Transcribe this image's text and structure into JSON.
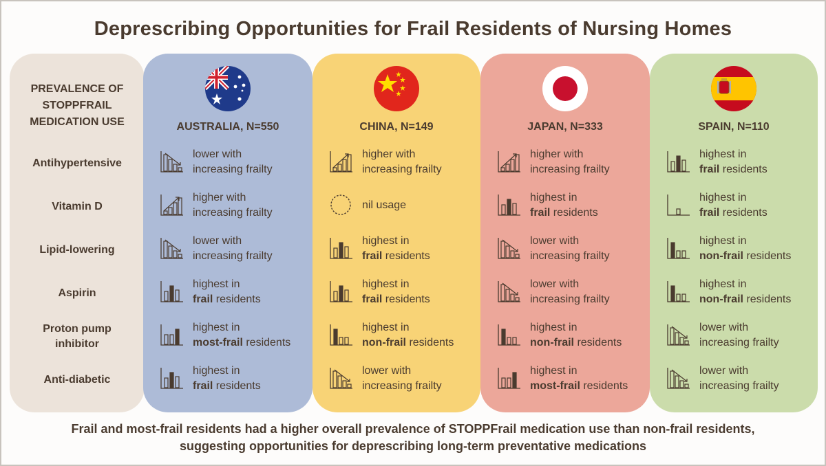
{
  "title": "Deprescribing Opportunities for Frail Residents of Nursing Homes",
  "label_header": [
    "PREVALENCE OF",
    "STOPPFRAIL",
    "MEDICATION USE"
  ],
  "medications": [
    [
      "Antihypertensive"
    ],
    [
      "Vitamin D"
    ],
    [
      "Lipid-lowering"
    ],
    [
      "Aspirin"
    ],
    [
      "Proton pump",
      "inhibitor"
    ],
    [
      "Anti-diabetic"
    ]
  ],
  "colors": {
    "labels": "#ece3da",
    "australia": "#adbbd7",
    "china": "#f8d376",
    "japan": "#eca79a",
    "spain": "#cbdcab"
  },
  "countries": [
    {
      "name": "AUSTRALIA, N=550",
      "flag": "australia-flag-icon",
      "cells": [
        {
          "icon": "lower-trend-chart-icon",
          "line1_pre": "lower with",
          "line1_bold": "",
          "line2_bold": "",
          "line2_post": "increasing frailty"
        },
        {
          "icon": "higher-trend-chart-icon",
          "line1_pre": "higher with",
          "line1_bold": "",
          "line2_bold": "",
          "line2_post": "increasing frailty"
        },
        {
          "icon": "lower-trend-chart-icon",
          "line1_pre": "lower with",
          "line1_bold": "",
          "line2_bold": "",
          "line2_post": "increasing frailty"
        },
        {
          "icon": "frail-highest-chart-icon",
          "line1_pre": "highest in",
          "line1_bold": "",
          "line2_bold": "frail",
          "line2_post": " residents"
        },
        {
          "icon": "most-frail-highest-chart-icon",
          "line1_pre": "highest in",
          "line1_bold": "",
          "line2_bold": "most-frail",
          "line2_post": " residents"
        },
        {
          "icon": "frail-highest-chart-icon",
          "line1_pre": "highest in",
          "line1_bold": "",
          "line2_bold": "frail",
          "line2_post": " residents"
        }
      ]
    },
    {
      "name": "CHINA, N=149",
      "flag": "china-flag-icon",
      "cells": [
        {
          "icon": "higher-trend-chart-icon",
          "line1_pre": "higher with",
          "line1_bold": "",
          "line2_bold": "",
          "line2_post": "increasing frailty"
        },
        {
          "icon": "nil-usage-circle-icon",
          "line1_pre": "nil usage",
          "line1_bold": "",
          "line2_bold": "",
          "line2_post": ""
        },
        {
          "icon": "frail-highest-chart-icon",
          "line1_pre": "highest in",
          "line1_bold": "",
          "line2_bold": "frail",
          "line2_post": " residents"
        },
        {
          "icon": "frail-highest-chart-icon",
          "line1_pre": "highest in",
          "line1_bold": "",
          "line2_bold": "frail",
          "line2_post": " residents"
        },
        {
          "icon": "non-frail-highest-chart-icon",
          "line1_pre": "highest in",
          "line1_bold": "",
          "line2_bold": "non-frail",
          "line2_post": " residents"
        },
        {
          "icon": "lower-trend-chart-icon",
          "line1_pre": "lower with",
          "line1_bold": "",
          "line2_bold": "",
          "line2_post": "increasing frailty"
        }
      ]
    },
    {
      "name": "JAPAN, N=333",
      "flag": "japan-flag-icon",
      "cells": [
        {
          "icon": "higher-trend-chart-icon",
          "line1_pre": "higher with",
          "line1_bold": "",
          "line2_bold": "",
          "line2_post": "increasing frailty"
        },
        {
          "icon": "frail-highest-chart-icon",
          "line1_pre": "highest in",
          "line1_bold": "",
          "line2_bold": "frail",
          "line2_post": " residents"
        },
        {
          "icon": "lower-trend-chart-icon",
          "line1_pre": "lower with",
          "line1_bold": "",
          "line2_bold": "",
          "line2_post": "increasing frailty"
        },
        {
          "icon": "lower-trend-chart-icon",
          "line1_pre": "lower with",
          "line1_bold": "",
          "line2_bold": "",
          "line2_post": "increasing frailty"
        },
        {
          "icon": "non-frail-highest-chart-icon",
          "line1_pre": "highest in",
          "line1_bold": "",
          "line2_bold": "non-frail",
          "line2_post": " residents"
        },
        {
          "icon": "most-frail-highest-chart-icon",
          "line1_pre": "highest in",
          "line1_bold": "",
          "line2_bold": "most-frail",
          "line2_post": " residents"
        }
      ]
    },
    {
      "name": "SPAIN, N=110",
      "flag": "spain-flag-icon",
      "cells": [
        {
          "icon": "frail-highest-chart-icon",
          "line1_pre": "highest in",
          "line1_bold": "",
          "line2_bold": "frail",
          "line2_post": " residents"
        },
        {
          "icon": "frail-only-chart-icon",
          "line1_pre": "highest in",
          "line1_bold": "",
          "line2_bold": "frail",
          "line2_post": " residents"
        },
        {
          "icon": "non-frail-highest-chart-icon",
          "line1_pre": "highest in",
          "line1_bold": "",
          "line2_bold": "non-frail",
          "line2_post": " residents"
        },
        {
          "icon": "non-frail-highest-chart-icon",
          "line1_pre": "highest in",
          "line1_bold": "",
          "line2_bold": "non-frail",
          "line2_post": " residents"
        },
        {
          "icon": "lower-trend-chart-icon",
          "line1_pre": "lower with",
          "line1_bold": "",
          "line2_bold": "",
          "line2_post": "increasing frailty"
        },
        {
          "icon": "lower-trend-chart-icon",
          "line1_pre": "lower with",
          "line1_bold": "",
          "line2_bold": "",
          "line2_post": "increasing frailty"
        }
      ]
    }
  ],
  "footer": [
    "Frail and most-frail residents had a higher overall prevalence of STOPPFrail medication use than non-frail residents,",
    "suggesting opportunities for deprescribing long-term preventative medications"
  ]
}
